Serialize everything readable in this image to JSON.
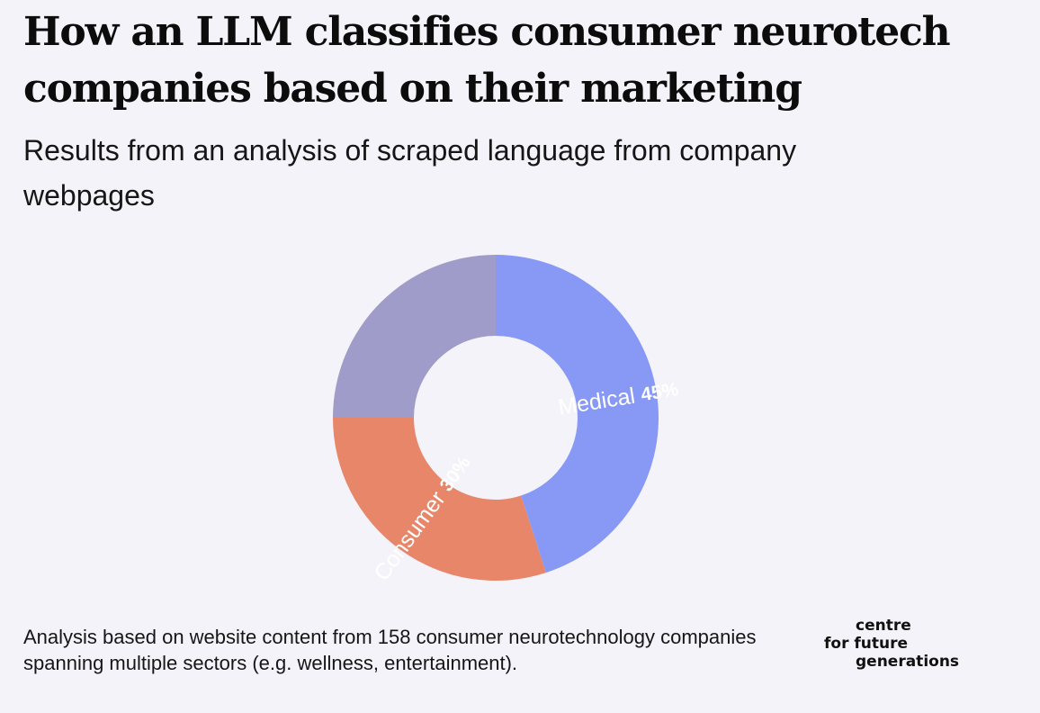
{
  "header": {
    "title": "How an LLM classifies consumer neurotech companies based on their marketing",
    "subtitle": "Results from an analysis of scraped language from company webpages"
  },
  "chart_data": {
    "type": "pie",
    "series": [
      {
        "name": "Medical",
        "value": 45,
        "value_label": "45%",
        "color": "#8799f5"
      },
      {
        "name": "Consumer",
        "value": 30,
        "value_label": "30%",
        "color": "#e8866a"
      },
      {
        "name": "",
        "value": 25,
        "value_label": "",
        "color": "#a09cc9"
      }
    ],
    "start_angle": "12 o'clock",
    "direction": "clockwise",
    "style": "donut",
    "legend": "none"
  },
  "footer": {
    "note": "Analysis based on website content from 158 consumer neurotechnology companies spanning multiple sectors (e.g. wellness, entertainment).",
    "logo_lines": [
      "centre",
      "for future",
      "generations"
    ]
  }
}
